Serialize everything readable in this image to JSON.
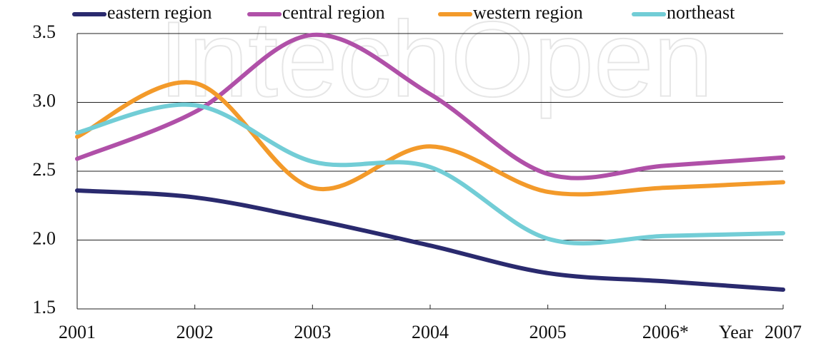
{
  "chart_data": {
    "type": "line",
    "watermark": "IntechOpen",
    "x_label": "Year",
    "categories": [
      "2001",
      "2002",
      "2003",
      "2004",
      "2005",
      "2006*",
      "2007"
    ],
    "series": [
      {
        "name": "eastern region",
        "color": "#2a2a6e",
        "values": [
          2.36,
          2.31,
          2.15,
          1.96,
          1.76,
          1.7,
          1.64
        ]
      },
      {
        "name": "central region",
        "color": "#b050a8",
        "values": [
          2.59,
          2.93,
          3.49,
          3.06,
          2.48,
          2.54,
          2.6
        ]
      },
      {
        "name": "western region",
        "color": "#f39a2a",
        "values": [
          2.75,
          3.14,
          2.38,
          2.68,
          2.35,
          2.38,
          2.42
        ]
      },
      {
        "name": "northeast",
        "color": "#72cdd6",
        "values": [
          2.78,
          2.98,
          2.57,
          2.53,
          2.01,
          2.03,
          2.05
        ]
      }
    ],
    "ylim": [
      1.5,
      3.5
    ],
    "yticks": [
      {
        "value": 1.5,
        "label": "1.5"
      },
      {
        "value": 2.0,
        "label": "2.0"
      },
      {
        "value": 2.5,
        "label": "2.5"
      },
      {
        "value": 3.0,
        "label": "3.0"
      },
      {
        "value": 3.5,
        "label": "3.5"
      }
    ],
    "grid": true
  }
}
